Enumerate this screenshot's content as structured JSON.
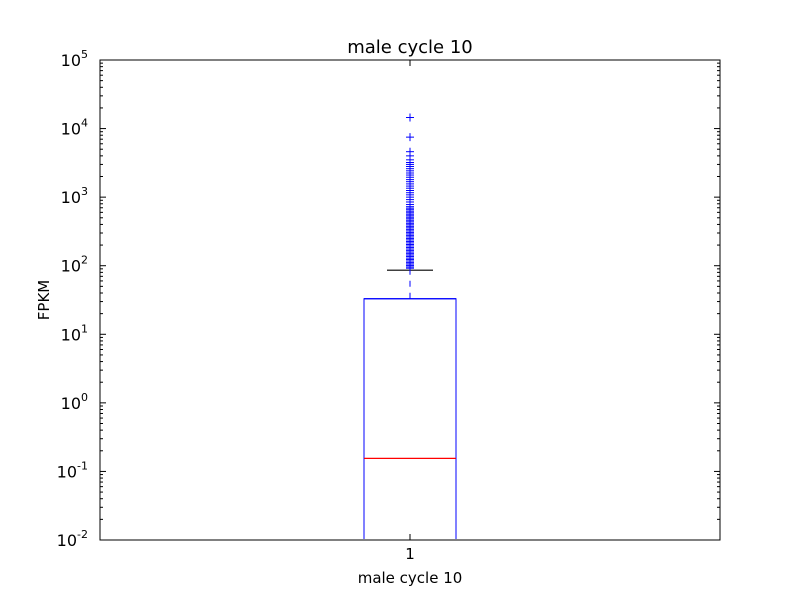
{
  "chart_data": {
    "type": "box",
    "title": "male cycle 10",
    "xlabel": "male cycle 10",
    "ylabel": "FPKM",
    "yscale": "log",
    "ylim": [
      0.01,
      100000
    ],
    "y_ticks": [
      {
        "value": 0.01,
        "base": "10",
        "exp": "-2"
      },
      {
        "value": 0.1,
        "base": "10",
        "exp": "-1"
      },
      {
        "value": 1,
        "base": "10",
        "exp": "0"
      },
      {
        "value": 10,
        "base": "10",
        "exp": "1"
      },
      {
        "value": 100,
        "base": "10",
        "exp": "2"
      },
      {
        "value": 1000,
        "base": "10",
        "exp": "3"
      },
      {
        "value": 10000,
        "base": "10",
        "exp": "4"
      },
      {
        "value": 100000,
        "base": "10",
        "exp": "5"
      }
    ],
    "categories": [
      "1"
    ],
    "box": {
      "median": 0.155,
      "q3": 33,
      "upper_whisker": 86,
      "dashed_whisker_values": [
        40,
        72
      ]
    },
    "outliers": [
      92,
      96,
      101,
      106,
      111,
      117,
      123,
      129,
      136,
      143,
      150,
      158,
      166,
      175,
      184,
      194,
      204,
      215,
      226,
      238,
      250,
      263,
      277,
      291,
      306,
      322,
      339,
      357,
      375,
      395,
      415,
      437,
      460,
      484,
      509,
      535,
      563,
      592,
      623,
      656,
      690,
      726,
      780,
      850,
      920,
      1000,
      1080,
      1160,
      1250,
      1350,
      1450,
      1560,
      1680,
      1800,
      1950,
      2100,
      2250,
      2420,
      2600,
      2800,
      3000,
      3200,
      3500,
      4000,
      4600,
      7500,
      14500
    ],
    "colors": {
      "box": "#0000ff",
      "median": "#ff0000",
      "cap": "#000000",
      "flier": "#0000ff"
    },
    "grid": false
  }
}
